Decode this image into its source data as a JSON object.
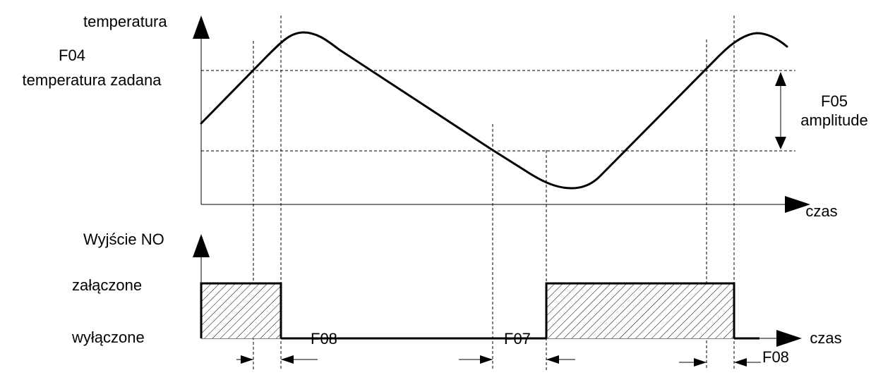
{
  "labels": {
    "temp_axis": "temperatura",
    "setpoint_code": "F04",
    "setpoint_name": "temperatura zadana",
    "amplitude_code": "F05",
    "amplitude_name": "amplitude",
    "time_axis_top": "czas",
    "output_axis": "Wyjście NO",
    "state_on": "załączone",
    "state_off": "wyłączone",
    "time_axis_bottom": "czas",
    "delay_left": "F08",
    "delay_mid": "F07",
    "delay_right": "F08"
  },
  "colors": {
    "line": "#000000",
    "background": "#ffffff"
  }
}
